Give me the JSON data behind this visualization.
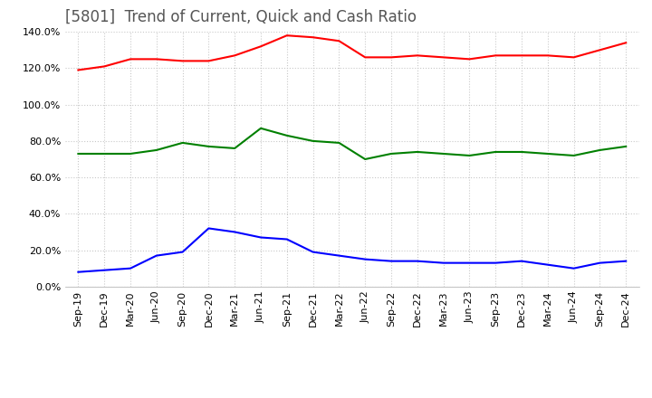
{
  "title": "[5801]  Trend of Current, Quick and Cash Ratio",
  "x_labels": [
    "Sep-19",
    "Dec-19",
    "Mar-20",
    "Jun-20",
    "Sep-20",
    "Dec-20",
    "Mar-21",
    "Jun-21",
    "Sep-21",
    "Dec-21",
    "Mar-22",
    "Jun-22",
    "Sep-22",
    "Dec-22",
    "Mar-23",
    "Jun-23",
    "Sep-23",
    "Dec-23",
    "Mar-24",
    "Jun-24",
    "Sep-24",
    "Dec-24"
  ],
  "current_ratio": [
    119,
    121,
    125,
    125,
    124,
    124,
    127,
    132,
    138,
    137,
    135,
    126,
    126,
    127,
    126,
    125,
    127,
    127,
    127,
    126,
    130,
    134
  ],
  "quick_ratio": [
    73,
    73,
    73,
    75,
    79,
    77,
    76,
    87,
    83,
    80,
    79,
    70,
    73,
    74,
    73,
    72,
    74,
    74,
    73,
    72,
    75,
    77
  ],
  "cash_ratio": [
    8,
    9,
    10,
    17,
    19,
    32,
    30,
    27,
    26,
    19,
    17,
    15,
    14,
    14,
    13,
    13,
    13,
    14,
    12,
    10,
    13,
    14
  ],
  "ylim": [
    0,
    140
  ],
  "yticks": [
    0,
    20,
    40,
    60,
    80,
    100,
    120,
    140
  ],
  "current_color": "#ff0000",
  "quick_color": "#008000",
  "cash_color": "#0000ff",
  "bg_color": "#ffffff",
  "grid_color": "#c8c8c8",
  "title_fontsize": 12,
  "axis_fontsize": 8,
  "legend_fontsize": 9
}
